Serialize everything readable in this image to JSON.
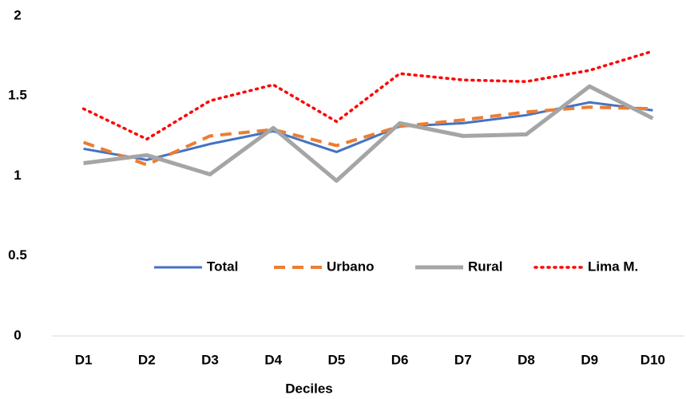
{
  "chart_data": {
    "type": "line",
    "x_label": "Deciles",
    "categories": [
      "D1",
      "D2",
      "D3",
      "D4",
      "D5",
      "D6",
      "D7",
      "D8",
      "D9",
      "D10"
    ],
    "series": [
      {
        "name": "Total",
        "color": "#4472c4",
        "style": "solid",
        "values": [
          1.17,
          1.1,
          1.2,
          1.28,
          1.15,
          1.31,
          1.33,
          1.38,
          1.46,
          1.41
        ]
      },
      {
        "name": "Urbano",
        "color": "#ed7d31",
        "style": "dashed",
        "values": [
          1.21,
          1.07,
          1.25,
          1.29,
          1.19,
          1.31,
          1.35,
          1.4,
          1.43,
          1.42
        ]
      },
      {
        "name": "Rural",
        "color": "#a5a5a5",
        "style": "thick",
        "values": [
          1.08,
          1.13,
          1.01,
          1.3,
          0.97,
          1.33,
          1.25,
          1.26,
          1.56,
          1.36
        ]
      },
      {
        "name": "Lima M.",
        "color": "#ff0000",
        "style": "dotted",
        "values": [
          1.42,
          1.23,
          1.47,
          1.57,
          1.34,
          1.64,
          1.6,
          1.59,
          1.66,
          1.78
        ]
      }
    ],
    "ylim": [
      0,
      2
    ],
    "yticks": [
      0,
      0.5,
      1,
      1.5,
      2
    ],
    "grid": false,
    "legend": "inside-lower"
  }
}
